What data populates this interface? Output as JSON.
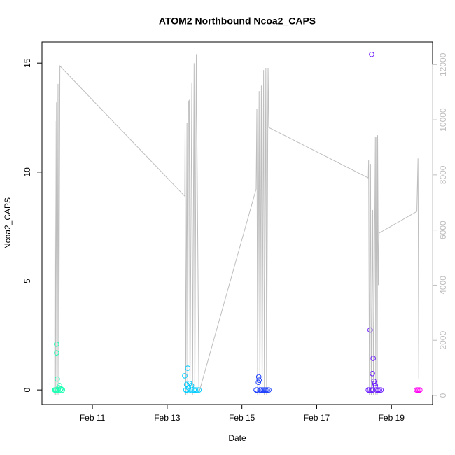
{
  "chart_data": {
    "type": "scatter",
    "title": "ATOM2 Northbound Ncoa2_CAPS",
    "x_label": "Date",
    "y_label": "Ncoa2_CAPS",
    "xlim": [
      9.65,
      20.1
    ],
    "xticks": [
      {
        "value": 11,
        "label": "Feb 11"
      },
      {
        "value": 13,
        "label": "Feb 13"
      },
      {
        "value": 15,
        "label": "Feb 15"
      },
      {
        "value": 17,
        "label": "Feb 17"
      },
      {
        "value": 19,
        "label": "Feb 19"
      }
    ],
    "ylim": [
      -0.67,
      15.97
    ],
    "yticks": [
      0,
      5,
      10,
      15
    ],
    "y2lim": [
      -330,
      12820
    ],
    "y2ticks": [
      0,
      2000,
      4000,
      6000,
      8000,
      10000,
      12000
    ],
    "y2_color": "#bebebe",
    "grid": false,
    "series": [
      {
        "color": "#1affb2",
        "x": [
          9.99,
          10.0,
          10.02,
          10.04,
          10.04,
          10.05,
          10.06,
          10.08,
          10.1,
          10.12,
          10.14,
          10.16,
          10.2
        ],
        "values": [
          0,
          0,
          0,
          2.1,
          1.7,
          0,
          0.5,
          0,
          0.1,
          0.2,
          0,
          0.05,
          0
        ]
      },
      {
        "color": "#00ccff",
        "x": [
          13.47,
          13.5,
          13.52,
          13.54,
          13.55,
          13.57,
          13.6,
          13.62,
          13.65,
          13.68,
          13.72,
          13.76,
          13.8,
          13.85
        ],
        "values": [
          0.65,
          0,
          0.25,
          0,
          1.0,
          0.1,
          0.3,
          0,
          0.2,
          0,
          0,
          0,
          0,
          0
        ]
      },
      {
        "color": "#1a3dff",
        "x": [
          15.38,
          15.41,
          15.44,
          15.45,
          15.46,
          15.48,
          15.5,
          15.53,
          15.57,
          15.6,
          15.64,
          15.68,
          15.72
        ],
        "values": [
          0,
          0,
          0.35,
          0.6,
          0.45,
          0,
          0,
          0,
          0,
          0,
          0,
          0,
          0
        ]
      },
      {
        "color": "#6a1aff",
        "x": [
          18.38,
          18.42,
          18.43,
          18.46,
          18.47,
          18.49,
          18.5,
          18.51,
          18.53,
          18.55,
          18.57,
          18.6,
          18.64,
          18.68,
          18.72
        ],
        "values": [
          0,
          0,
          2.75,
          0,
          15.4,
          0.75,
          0,
          1.45,
          0.4,
          0.3,
          0.2,
          0,
          0,
          0,
          0
        ]
      },
      {
        "color": "#ff00f0",
        "x": [
          19.67,
          19.7,
          19.73,
          19.76
        ],
        "values": [
          0,
          0,
          0,
          0
        ]
      },
      {
        "type": "line",
        "axis": "y2",
        "color": "#bebebe",
        "x": [
          9.99,
          10.0,
          10.02,
          10.04,
          10.06,
          10.08,
          10.1,
          10.13,
          13.47,
          13.48,
          13.5,
          13.53,
          13.55,
          13.57,
          13.59,
          13.61,
          13.66,
          13.68,
          13.72,
          13.74,
          13.78,
          13.85,
          15.38,
          15.4,
          15.42,
          15.46,
          15.48,
          15.52,
          15.54,
          15.58,
          15.6,
          15.64,
          15.66,
          15.7,
          15.72,
          18.38,
          18.39,
          18.41,
          18.44,
          18.46,
          18.5,
          18.52,
          18.57,
          18.58,
          18.6,
          18.62,
          18.63,
          18.65,
          18.67,
          19.68,
          19.71,
          19.73
        ],
        "values": [
          0,
          9950,
          0,
          10630,
          0,
          11300,
          0,
          11950,
          7230,
          9770,
          0,
          9900,
          0,
          10660,
          10700,
          0,
          11350,
          0,
          12050,
          0,
          12380,
          100,
          7490,
          10400,
          0,
          11040,
          0,
          11240,
          0,
          11800,
          0,
          11880,
          0,
          11880,
          9720,
          7890,
          8550,
          0,
          8400,
          0,
          6730,
          0,
          9390,
          0,
          9390,
          0,
          9440,
          4000,
          5890,
          6675,
          8600,
          600
        ]
      }
    ]
  }
}
